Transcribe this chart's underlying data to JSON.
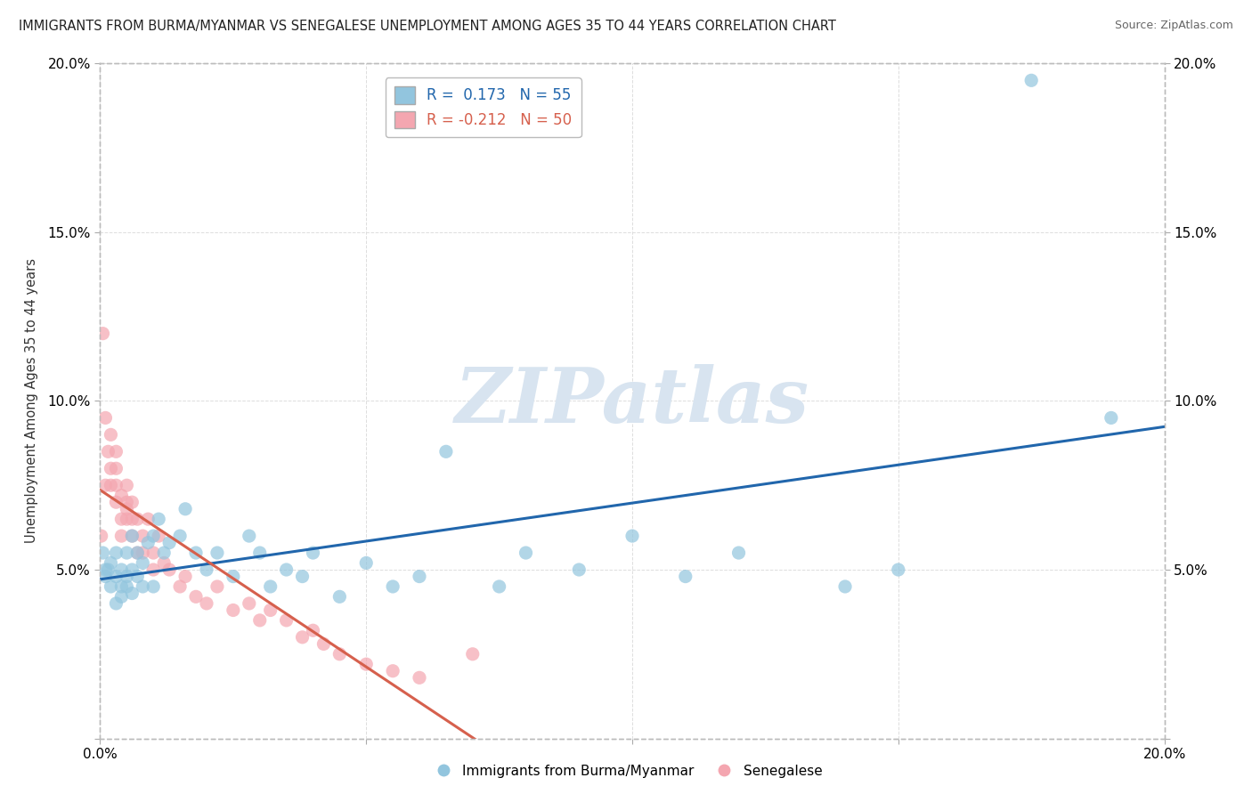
{
  "title": "IMMIGRANTS FROM BURMA/MYANMAR VS SENEGALESE UNEMPLOYMENT AMONG AGES 35 TO 44 YEARS CORRELATION CHART",
  "source": "Source: ZipAtlas.com",
  "ylabel": "Unemployment Among Ages 35 to 44 years",
  "xlim": [
    0.0,
    0.2
  ],
  "ylim": [
    0.0,
    0.2
  ],
  "burma_R": 0.173,
  "burma_N": 55,
  "senegal_R": -0.212,
  "senegal_N": 50,
  "burma_color": "#92c5de",
  "senegal_color": "#f4a6b0",
  "burma_line_color": "#2166ac",
  "senegal_line_color": "#d6604d",
  "watermark": "ZIPatlas",
  "watermark_color": "#d8e4f0",
  "background_color": "#ffffff",
  "grid_color": "#dddddd",
  "burma_scatter_x": [
    0.0005,
    0.001,
    0.001,
    0.0015,
    0.002,
    0.002,
    0.003,
    0.003,
    0.003,
    0.004,
    0.004,
    0.004,
    0.005,
    0.005,
    0.005,
    0.006,
    0.006,
    0.006,
    0.007,
    0.007,
    0.008,
    0.008,
    0.009,
    0.01,
    0.01,
    0.011,
    0.012,
    0.013,
    0.015,
    0.016,
    0.018,
    0.02,
    0.022,
    0.025,
    0.028,
    0.03,
    0.032,
    0.035,
    0.038,
    0.04,
    0.045,
    0.05,
    0.055,
    0.06,
    0.065,
    0.075,
    0.08,
    0.09,
    0.1,
    0.11,
    0.12,
    0.14,
    0.15,
    0.175,
    0.19
  ],
  "burma_scatter_y": [
    0.055,
    0.05,
    0.048,
    0.05,
    0.045,
    0.052,
    0.048,
    0.055,
    0.04,
    0.045,
    0.05,
    0.042,
    0.048,
    0.055,
    0.045,
    0.05,
    0.043,
    0.06,
    0.048,
    0.055,
    0.052,
    0.045,
    0.058,
    0.06,
    0.045,
    0.065,
    0.055,
    0.058,
    0.06,
    0.068,
    0.055,
    0.05,
    0.055,
    0.048,
    0.06,
    0.055,
    0.045,
    0.05,
    0.048,
    0.055,
    0.042,
    0.052,
    0.045,
    0.048,
    0.085,
    0.045,
    0.055,
    0.05,
    0.06,
    0.048,
    0.055,
    0.045,
    0.05,
    0.195,
    0.095
  ],
  "senegal_scatter_x": [
    0.0002,
    0.0005,
    0.001,
    0.001,
    0.0015,
    0.002,
    0.002,
    0.002,
    0.003,
    0.003,
    0.003,
    0.003,
    0.004,
    0.004,
    0.004,
    0.005,
    0.005,
    0.005,
    0.005,
    0.006,
    0.006,
    0.006,
    0.007,
    0.007,
    0.008,
    0.008,
    0.009,
    0.01,
    0.01,
    0.011,
    0.012,
    0.013,
    0.015,
    0.016,
    0.018,
    0.02,
    0.022,
    0.025,
    0.028,
    0.03,
    0.032,
    0.035,
    0.038,
    0.04,
    0.042,
    0.045,
    0.05,
    0.055,
    0.06,
    0.07
  ],
  "senegal_scatter_y": [
    0.06,
    0.12,
    0.075,
    0.095,
    0.085,
    0.075,
    0.08,
    0.09,
    0.07,
    0.075,
    0.08,
    0.085,
    0.065,
    0.072,
    0.06,
    0.068,
    0.065,
    0.075,
    0.07,
    0.06,
    0.065,
    0.07,
    0.055,
    0.065,
    0.06,
    0.055,
    0.065,
    0.05,
    0.055,
    0.06,
    0.052,
    0.05,
    0.045,
    0.048,
    0.042,
    0.04,
    0.045,
    0.038,
    0.04,
    0.035,
    0.038,
    0.035,
    0.03,
    0.032,
    0.028,
    0.025,
    0.022,
    0.02,
    0.018,
    0.025
  ]
}
